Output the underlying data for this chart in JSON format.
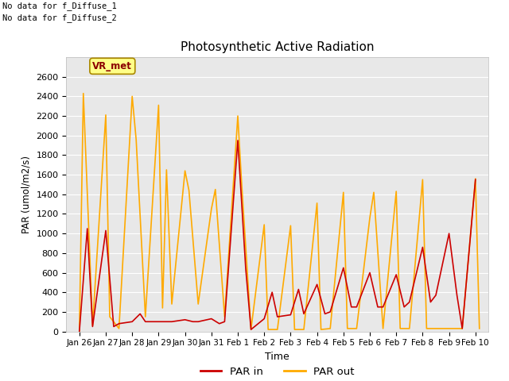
{
  "title": "Photosynthetic Active Radiation",
  "xlabel": "Time",
  "ylabel": "PAR (umol/m2/s)",
  "ylim": [
    0,
    2800
  ],
  "yticks": [
    0,
    200,
    400,
    600,
    800,
    1000,
    1200,
    1400,
    1600,
    1800,
    2000,
    2200,
    2400,
    2600
  ],
  "bg_color": "#e8e8e8",
  "text_annotations": [
    "No data for f_Diffuse_1",
    "No data for f_Diffuse_2"
  ],
  "vr_met_label": "VR_met",
  "legend_entries": [
    "PAR in",
    "PAR out"
  ],
  "par_in_color": "#cc0000",
  "par_out_color": "#ffaa00",
  "x_tick_labels": [
    "Jan 26",
    "Jan 27",
    "Jan 28",
    "Jan 29",
    "Jan 30",
    "Jan 31",
    "Feb 1",
    "Feb 2",
    "Feb 3",
    "Feb 4",
    "Feb 5",
    "Feb 6",
    "Feb 7",
    "Feb 8",
    "Feb 9",
    "Feb 10"
  ],
  "par_in_x": [
    0,
    0.3,
    0.5,
    1.0,
    1.3,
    1.5,
    2.0,
    2.3,
    2.5,
    3.0,
    3.3,
    3.5,
    4.0,
    4.3,
    4.5,
    5.0,
    5.3,
    5.5,
    6.0,
    6.3,
    6.5,
    7.0,
    7.3,
    7.5,
    8.0,
    8.3,
    8.5,
    9.0,
    9.3,
    9.5,
    10.0,
    10.3,
    10.5,
    11.0,
    11.3,
    11.5,
    12.0,
    12.3,
    12.5,
    13.0,
    13.3,
    13.5,
    14.0,
    14.3,
    14.5,
    15.0
  ],
  "par_in_y": [
    0,
    1050,
    50,
    1030,
    50,
    80,
    100,
    180,
    100,
    100,
    100,
    100,
    120,
    100,
    100,
    130,
    80,
    100,
    1950,
    640,
    20,
    130,
    400,
    150,
    170,
    430,
    180,
    480,
    180,
    200,
    650,
    250,
    250,
    600,
    250,
    250,
    580,
    250,
    300,
    860,
    300,
    370,
    1000,
    370,
    30,
    1550
  ],
  "par_out_x": [
    0,
    0.15,
    0.5,
    1.0,
    1.15,
    1.5,
    2.0,
    2.15,
    2.5,
    3.0,
    3.15,
    3.3,
    3.5,
    4.0,
    4.15,
    4.5,
    5.0,
    5.15,
    5.5,
    6.0,
    6.15,
    6.5,
    7.0,
    7.15,
    7.5,
    8.0,
    8.15,
    8.5,
    9.0,
    9.15,
    9.5,
    10.0,
    10.15,
    10.5,
    11.0,
    11.15,
    11.5,
    12.0,
    12.15,
    12.5,
    13.0,
    13.15,
    13.5,
    14.0,
    14.15,
    14.5,
    15.0,
    15.15
  ],
  "par_out_y": [
    0,
    2430,
    60,
    2210,
    150,
    30,
    2400,
    1960,
    150,
    2310,
    240,
    1650,
    280,
    1640,
    1440,
    280,
    1250,
    1450,
    150,
    2200,
    1490,
    20,
    1090,
    20,
    20,
    1080,
    20,
    20,
    1310,
    20,
    30,
    1420,
    30,
    30,
    1160,
    1420,
    30,
    1430,
    30,
    30,
    1550,
    30,
    30,
    30,
    30,
    30,
    1560,
    30
  ],
  "figsize": [
    6.4,
    4.8
  ],
  "dpi": 100
}
